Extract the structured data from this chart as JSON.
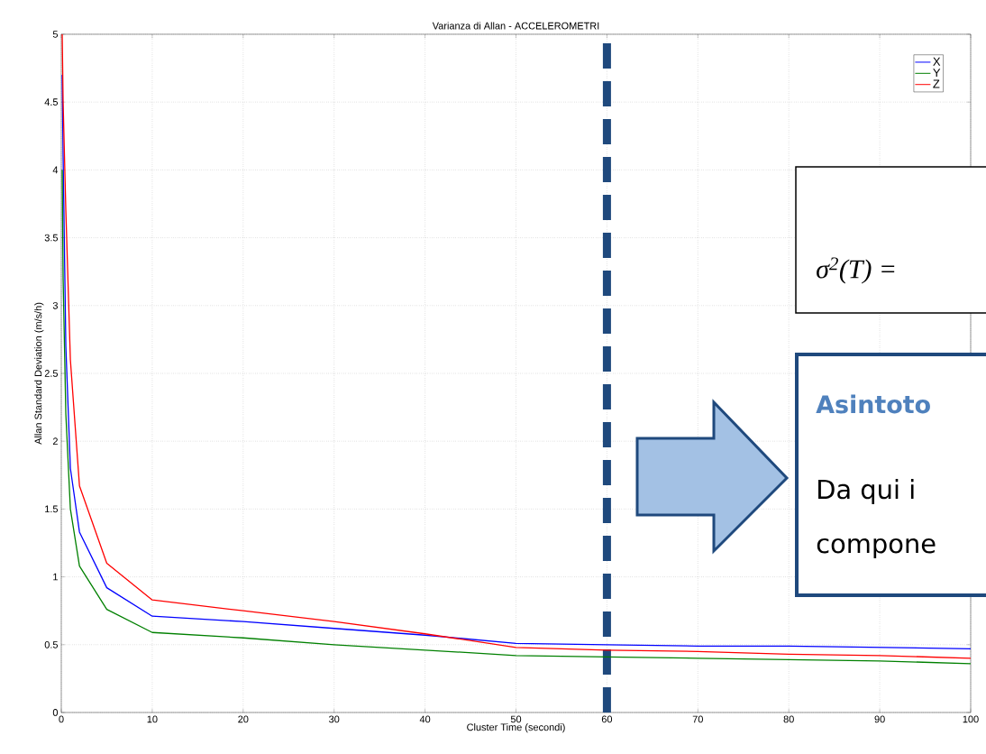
{
  "chart_data": {
    "type": "line",
    "title": "Varianza di Allan - ACCELEROMETRI",
    "xlabel": "Cluster Time (secondi)",
    "ylabel": "Allan Standard Deviation (m/s/h)",
    "x": [
      0.1,
      0.2,
      0.5,
      1,
      2,
      5,
      10,
      20,
      30,
      40,
      50,
      60,
      70,
      80,
      90,
      100
    ],
    "series": [
      {
        "name": "X",
        "color": "#0000ff",
        "values": [
          4.7,
          4.1,
          2.7,
          1.8,
          1.33,
          0.92,
          0.71,
          0.67,
          0.62,
          0.57,
          0.51,
          0.5,
          0.49,
          0.49,
          0.48,
          0.47
        ]
      },
      {
        "name": "Y",
        "color": "#008000",
        "values": [
          4.0,
          3.2,
          2.2,
          1.5,
          1.08,
          0.76,
          0.59,
          0.55,
          0.5,
          0.46,
          0.42,
          0.41,
          0.4,
          0.39,
          0.38,
          0.36
        ]
      },
      {
        "name": "Z",
        "color": "#ff0000",
        "values": [
          5.0,
          4.5,
          3.7,
          2.6,
          1.67,
          1.1,
          0.83,
          0.75,
          0.67,
          0.58,
          0.48,
          0.46,
          0.45,
          0.43,
          0.42,
          0.4
        ]
      }
    ],
    "xlim": [
      0,
      100
    ],
    "ylim": [
      0,
      5
    ],
    "xticks": [
      0,
      10,
      20,
      30,
      40,
      50,
      60,
      70,
      80,
      90,
      100
    ],
    "yticks": [
      0,
      0.5,
      1,
      1.5,
      2,
      2.5,
      3,
      3.5,
      4,
      4.5,
      5
    ],
    "grid": true,
    "legend": "top right",
    "marker": "none",
    "line_style": "solid",
    "ref_lines": [
      {
        "axis": "x",
        "value": 60,
        "color": "#1f497d",
        "line_style": "dashed"
      }
    ],
    "annotations": [
      "σ$^{2}$(T) =",
      "Asintoto",
      "Da qui i",
      "compone"
    ]
  }
}
